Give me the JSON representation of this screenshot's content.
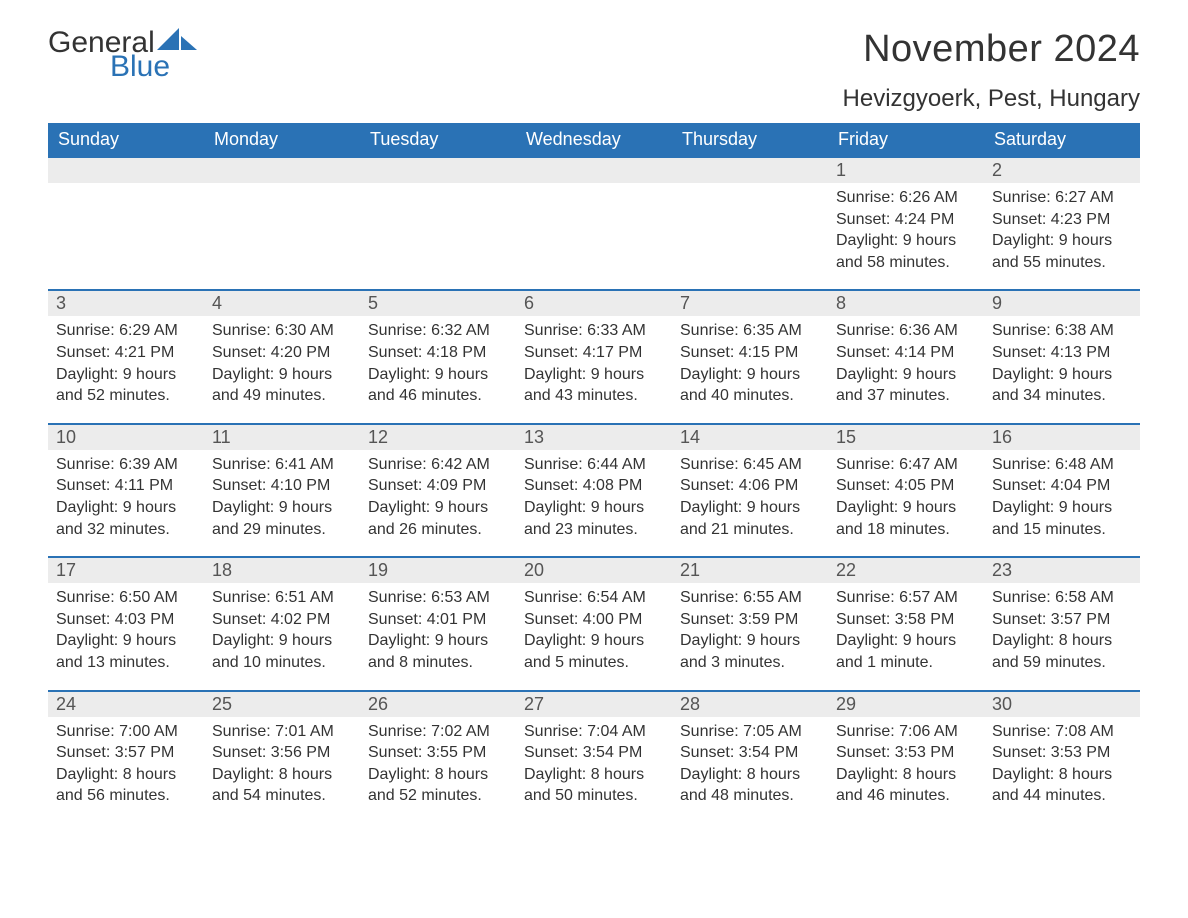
{
  "brand": {
    "word1": "General",
    "word2": "Blue",
    "word1_color": "#333333",
    "word2_color": "#2a72b5",
    "sail_color": "#2a72b5"
  },
  "title": "November 2024",
  "location": "Hevizgyoerk, Pest, Hungary",
  "colors": {
    "header_bg": "#2a72b5",
    "header_text": "#ffffff",
    "day_bar_bg": "#ececec",
    "day_bar_text": "#555555",
    "body_text": "#333333",
    "page_bg": "#ffffff",
    "row_border": "#2a72b5"
  },
  "font": {
    "family": "Arial",
    "title_size_pt": 28,
    "location_size_pt": 18,
    "weekday_size_pt": 14,
    "daynum_size_pt": 14,
    "body_size_pt": 12
  },
  "weekdays": [
    "Sunday",
    "Monday",
    "Tuesday",
    "Wednesday",
    "Thursday",
    "Friday",
    "Saturday"
  ],
  "labels": {
    "sunrise": "Sunrise:",
    "sunset": "Sunset:",
    "daylight": "Daylight:"
  },
  "weeks": [
    [
      null,
      null,
      null,
      null,
      null,
      {
        "n": "1",
        "sunrise": "6:26 AM",
        "sunset": "4:24 PM",
        "daylight": "9 hours and 58 minutes."
      },
      {
        "n": "2",
        "sunrise": "6:27 AM",
        "sunset": "4:23 PM",
        "daylight": "9 hours and 55 minutes."
      }
    ],
    [
      {
        "n": "3",
        "sunrise": "6:29 AM",
        "sunset": "4:21 PM",
        "daylight": "9 hours and 52 minutes."
      },
      {
        "n": "4",
        "sunrise": "6:30 AM",
        "sunset": "4:20 PM",
        "daylight": "9 hours and 49 minutes."
      },
      {
        "n": "5",
        "sunrise": "6:32 AM",
        "sunset": "4:18 PM",
        "daylight": "9 hours and 46 minutes."
      },
      {
        "n": "6",
        "sunrise": "6:33 AM",
        "sunset": "4:17 PM",
        "daylight": "9 hours and 43 minutes."
      },
      {
        "n": "7",
        "sunrise": "6:35 AM",
        "sunset": "4:15 PM",
        "daylight": "9 hours and 40 minutes."
      },
      {
        "n": "8",
        "sunrise": "6:36 AM",
        "sunset": "4:14 PM",
        "daylight": "9 hours and 37 minutes."
      },
      {
        "n": "9",
        "sunrise": "6:38 AM",
        "sunset": "4:13 PM",
        "daylight": "9 hours and 34 minutes."
      }
    ],
    [
      {
        "n": "10",
        "sunrise": "6:39 AM",
        "sunset": "4:11 PM",
        "daylight": "9 hours and 32 minutes."
      },
      {
        "n": "11",
        "sunrise": "6:41 AM",
        "sunset": "4:10 PM",
        "daylight": "9 hours and 29 minutes."
      },
      {
        "n": "12",
        "sunrise": "6:42 AM",
        "sunset": "4:09 PM",
        "daylight": "9 hours and 26 minutes."
      },
      {
        "n": "13",
        "sunrise": "6:44 AM",
        "sunset": "4:08 PM",
        "daylight": "9 hours and 23 minutes."
      },
      {
        "n": "14",
        "sunrise": "6:45 AM",
        "sunset": "4:06 PM",
        "daylight": "9 hours and 21 minutes."
      },
      {
        "n": "15",
        "sunrise": "6:47 AM",
        "sunset": "4:05 PM",
        "daylight": "9 hours and 18 minutes."
      },
      {
        "n": "16",
        "sunrise": "6:48 AM",
        "sunset": "4:04 PM",
        "daylight": "9 hours and 15 minutes."
      }
    ],
    [
      {
        "n": "17",
        "sunrise": "6:50 AM",
        "sunset": "4:03 PM",
        "daylight": "9 hours and 13 minutes."
      },
      {
        "n": "18",
        "sunrise": "6:51 AM",
        "sunset": "4:02 PM",
        "daylight": "9 hours and 10 minutes."
      },
      {
        "n": "19",
        "sunrise": "6:53 AM",
        "sunset": "4:01 PM",
        "daylight": "9 hours and 8 minutes."
      },
      {
        "n": "20",
        "sunrise": "6:54 AM",
        "sunset": "4:00 PM",
        "daylight": "9 hours and 5 minutes."
      },
      {
        "n": "21",
        "sunrise": "6:55 AM",
        "sunset": "3:59 PM",
        "daylight": "9 hours and 3 minutes."
      },
      {
        "n": "22",
        "sunrise": "6:57 AM",
        "sunset": "3:58 PM",
        "daylight": "9 hours and 1 minute."
      },
      {
        "n": "23",
        "sunrise": "6:58 AM",
        "sunset": "3:57 PM",
        "daylight": "8 hours and 59 minutes."
      }
    ],
    [
      {
        "n": "24",
        "sunrise": "7:00 AM",
        "sunset": "3:57 PM",
        "daylight": "8 hours and 56 minutes."
      },
      {
        "n": "25",
        "sunrise": "7:01 AM",
        "sunset": "3:56 PM",
        "daylight": "8 hours and 54 minutes."
      },
      {
        "n": "26",
        "sunrise": "7:02 AM",
        "sunset": "3:55 PM",
        "daylight": "8 hours and 52 minutes."
      },
      {
        "n": "27",
        "sunrise": "7:04 AM",
        "sunset": "3:54 PM",
        "daylight": "8 hours and 50 minutes."
      },
      {
        "n": "28",
        "sunrise": "7:05 AM",
        "sunset": "3:54 PM",
        "daylight": "8 hours and 48 minutes."
      },
      {
        "n": "29",
        "sunrise": "7:06 AM",
        "sunset": "3:53 PM",
        "daylight": "8 hours and 46 minutes."
      },
      {
        "n": "30",
        "sunrise": "7:08 AM",
        "sunset": "3:53 PM",
        "daylight": "8 hours and 44 minutes."
      }
    ]
  ]
}
